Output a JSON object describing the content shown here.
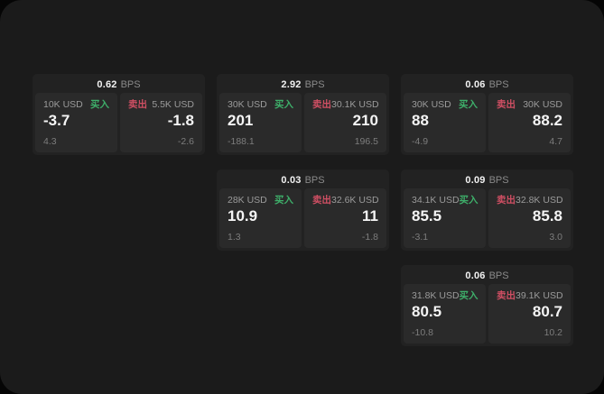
{
  "colors": {
    "window_bg": "#1b1b1b",
    "outer_bg": "#050505",
    "card_bg": "#222222",
    "panel_bg": "#2a2a2a",
    "buy_green": "#3eaf6a",
    "sell_red": "#cf4f63"
  },
  "cards": [
    {
      "bps_value": "0.62",
      "bps_unit": "BPS",
      "buy": {
        "notional": "10K USD",
        "side_label": "买入",
        "price": "-3.7",
        "delta": "4.3"
      },
      "sell": {
        "side_label": "卖出",
        "notional": "5.5K USD",
        "price": "-1.8",
        "delta": "-2.6"
      }
    },
    {
      "bps_value": "2.92",
      "bps_unit": "BPS",
      "buy": {
        "notional": "30K USD",
        "side_label": "买入",
        "price": "201",
        "delta": "-188.1"
      },
      "sell": {
        "side_label": "卖出",
        "notional": "30.1K USD",
        "price": "210",
        "delta": "196.5"
      }
    },
    {
      "bps_value": "0.06",
      "bps_unit": "BPS",
      "buy": {
        "notional": "30K USD",
        "side_label": "买入",
        "price": "88",
        "delta": "-4.9"
      },
      "sell": {
        "side_label": "卖出",
        "notional": "30K USD",
        "price": "88.2",
        "delta": "4.7"
      }
    },
    {
      "bps_value": "0.03",
      "bps_unit": "BPS",
      "buy": {
        "notional": "28K USD",
        "side_label": "买入",
        "price": "10.9",
        "delta": "1.3"
      },
      "sell": {
        "side_label": "卖出",
        "notional": "32.6K USD",
        "price": "11",
        "delta": "-1.8"
      }
    },
    {
      "bps_value": "0.09",
      "bps_unit": "BPS",
      "buy": {
        "notional": "34.1K USD",
        "side_label": "买入",
        "price": "85.5",
        "delta": "-3.1"
      },
      "sell": {
        "side_label": "卖出",
        "notional": "32.8K USD",
        "price": "85.8",
        "delta": "3.0"
      }
    },
    {
      "bps_value": "0.06",
      "bps_unit": "BPS",
      "buy": {
        "notional": "31.8K USD",
        "side_label": "买入",
        "price": "80.5",
        "delta": "-10.8"
      },
      "sell": {
        "side_label": "卖出",
        "notional": "39.1K USD",
        "price": "80.7",
        "delta": "10.2"
      }
    }
  ]
}
